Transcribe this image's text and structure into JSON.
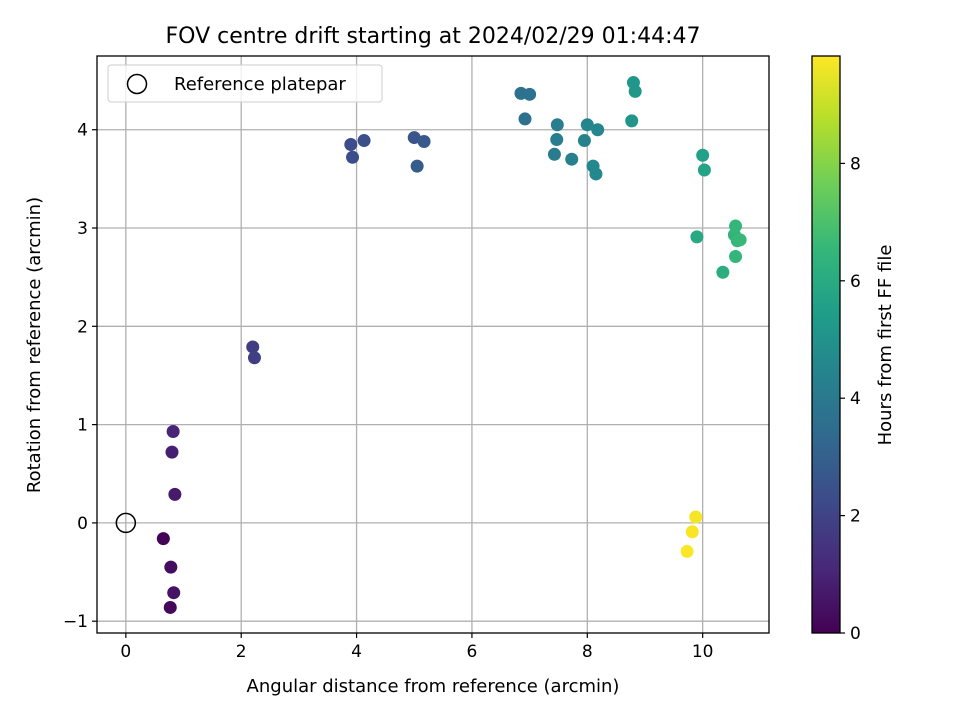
{
  "chart_data": {
    "type": "scatter",
    "title": "FOV centre drift starting at 2024/02/29 01:44:47",
    "xlabel": "Angular distance from reference (arcmin)",
    "ylabel": "Rotation from reference (arcmin)",
    "xlim": [
      -0.5,
      11.15
    ],
    "ylim": [
      -1.12,
      4.75
    ],
    "xticks": [
      0,
      2,
      4,
      6,
      8,
      10
    ],
    "yticks": [
      -1,
      0,
      1,
      2,
      3,
      4
    ],
    "grid": true,
    "legend": {
      "placement": "top-left",
      "entries": [
        "Reference platepar"
      ]
    },
    "reference_point": {
      "x": 0,
      "y": 0,
      "label": "Reference platepar",
      "marker": "open-circle"
    },
    "colorbar": {
      "label": "Hours from first FF file",
      "range": [
        0,
        9.83
      ],
      "ticks": [
        0,
        2,
        4,
        6,
        8
      ],
      "colormap": "viridis",
      "colormap_stops": [
        "#440154",
        "#482878",
        "#3e4989",
        "#31688e",
        "#26828e",
        "#1f9e89",
        "#35b779",
        "#6ece58",
        "#b5de2b",
        "#fde725"
      ]
    },
    "points": [
      {
        "x": 0.65,
        "y": -0.16,
        "hours": 0.05
      },
      {
        "x": 0.77,
        "y": -0.86,
        "hours": 0.2
      },
      {
        "x": 0.78,
        "y": -0.45,
        "hours": 0.35
      },
      {
        "x": 0.83,
        "y": -0.71,
        "hours": 0.5
      },
      {
        "x": 0.85,
        "y": 0.29,
        "hours": 0.7
      },
      {
        "x": 0.8,
        "y": 0.72,
        "hours": 0.85
      },
      {
        "x": 0.82,
        "y": 0.93,
        "hours": 1.0
      },
      {
        "x": 2.2,
        "y": 1.79,
        "hours": 1.75
      },
      {
        "x": 2.23,
        "y": 1.68,
        "hours": 1.85
      },
      {
        "x": 3.9,
        "y": 3.85,
        "hours": 2.3
      },
      {
        "x": 3.93,
        "y": 3.72,
        "hours": 2.35
      },
      {
        "x": 4.13,
        "y": 3.89,
        "hours": 2.4
      },
      {
        "x": 5.0,
        "y": 3.92,
        "hours": 2.6
      },
      {
        "x": 5.17,
        "y": 3.88,
        "hours": 2.75
      },
      {
        "x": 5.05,
        "y": 3.63,
        "hours": 2.9
      },
      {
        "x": 6.85,
        "y": 4.37,
        "hours": 3.6
      },
      {
        "x": 7.0,
        "y": 4.36,
        "hours": 3.7
      },
      {
        "x": 6.92,
        "y": 4.11,
        "hours": 3.65
      },
      {
        "x": 7.43,
        "y": 3.75,
        "hours": 4.1
      },
      {
        "x": 7.47,
        "y": 3.9,
        "hours": 4.15
      },
      {
        "x": 7.48,
        "y": 4.05,
        "hours": 4.2
      },
      {
        "x": 7.73,
        "y": 3.7,
        "hours": 4.3
      },
      {
        "x": 7.95,
        "y": 3.89,
        "hours": 4.4
      },
      {
        "x": 8.0,
        "y": 4.05,
        "hours": 4.5
      },
      {
        "x": 8.18,
        "y": 4.0,
        "hours": 4.55
      },
      {
        "x": 8.1,
        "y": 3.63,
        "hours": 4.6
      },
      {
        "x": 8.15,
        "y": 3.55,
        "hours": 4.65
      },
      {
        "x": 8.77,
        "y": 4.09,
        "hours": 5.1
      },
      {
        "x": 8.8,
        "y": 4.48,
        "hours": 5.15
      },
      {
        "x": 8.83,
        "y": 4.39,
        "hours": 5.2
      },
      {
        "x": 9.9,
        "y": 2.91,
        "hours": 5.9
      },
      {
        "x": 10.0,
        "y": 3.74,
        "hours": 5.6
      },
      {
        "x": 10.03,
        "y": 3.59,
        "hours": 5.7
      },
      {
        "x": 10.35,
        "y": 2.55,
        "hours": 6.1
      },
      {
        "x": 10.55,
        "y": 2.93,
        "hours": 6.4
      },
      {
        "x": 10.57,
        "y": 3.02,
        "hours": 6.5
      },
      {
        "x": 10.57,
        "y": 2.71,
        "hours": 6.45
      },
      {
        "x": 10.6,
        "y": 2.87,
        "hours": 6.55
      },
      {
        "x": 10.65,
        "y": 2.88,
        "hours": 6.6
      },
      {
        "x": 9.88,
        "y": 0.06,
        "hours": 9.7
      },
      {
        "x": 9.82,
        "y": -0.09,
        "hours": 9.75
      },
      {
        "x": 9.73,
        "y": -0.29,
        "hours": 9.8
      }
    ]
  }
}
